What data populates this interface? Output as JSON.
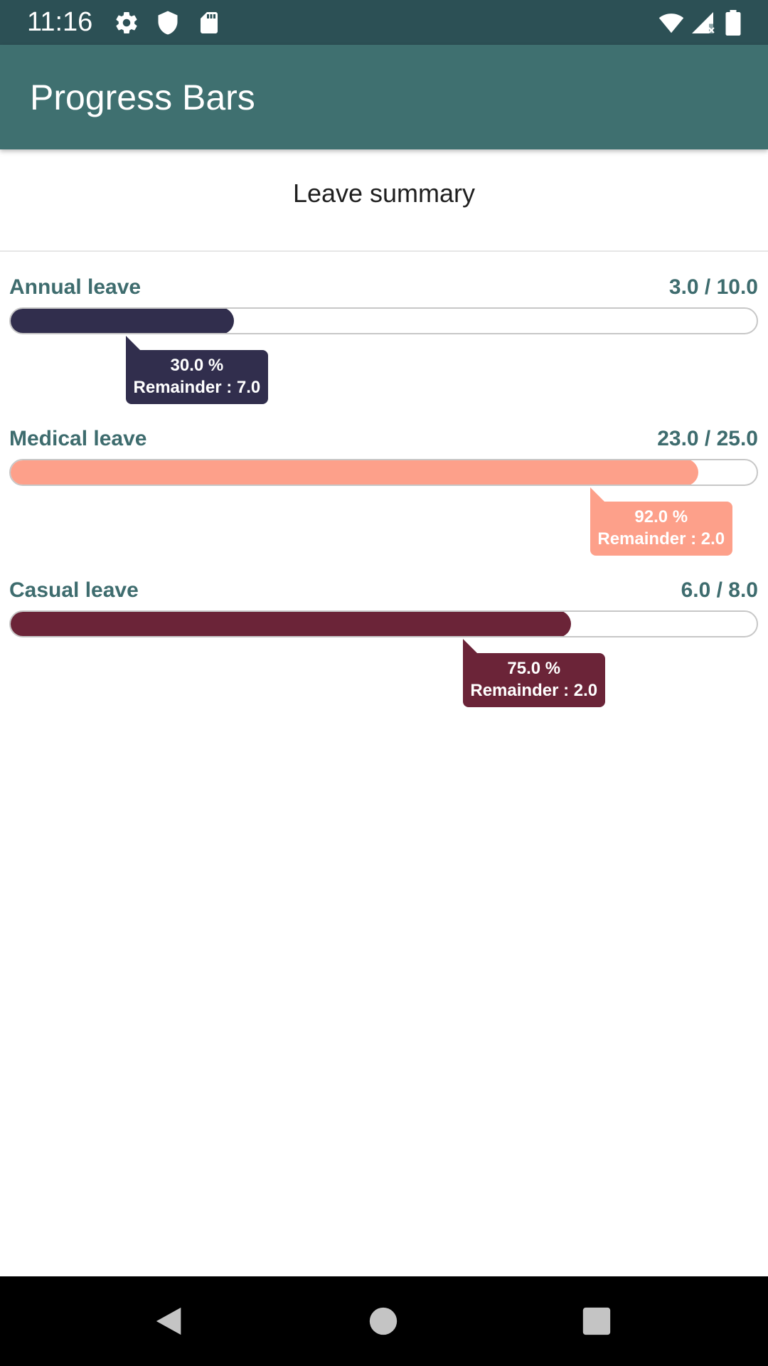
{
  "status_bar": {
    "time": "11:16",
    "icons": [
      "gear-icon",
      "shield-icon",
      "sd-card-icon",
      "wifi-icon",
      "signal-icon",
      "battery-icon"
    ]
  },
  "app_bar": {
    "title": "Progress Bars"
  },
  "summary": {
    "title": "Leave summary"
  },
  "leaves": [
    {
      "label": "Annual leave",
      "value_text": "3.0 / 10.0",
      "used": 3.0,
      "total": 10.0,
      "fraction": 0.3,
      "percent_text": "30.0 %",
      "remainder_text": "Remainder : 7.0",
      "color": "#312e4d"
    },
    {
      "label": "Medical leave",
      "value_text": "23.0 / 25.0",
      "used": 23.0,
      "total": 25.0,
      "fraction": 0.92,
      "percent_text": "92.0 %",
      "remainder_text": "Remainder : 2.0",
      "color": "#fda08a"
    },
    {
      "label": "Casual leave",
      "value_text": "6.0 / 8.0",
      "used": 6.0,
      "total": 8.0,
      "fraction": 0.75,
      "percent_text": "75.0 %",
      "remainder_text": "Remainder : 2.0",
      "color": "#6b2438"
    }
  ],
  "colors": {
    "status_bar": "#2c5055",
    "app_bar": "#3f7070",
    "label_text": "#3e6c6e"
  },
  "nav_bar": {
    "icons": [
      "back-icon",
      "home-icon",
      "recents-icon"
    ]
  }
}
